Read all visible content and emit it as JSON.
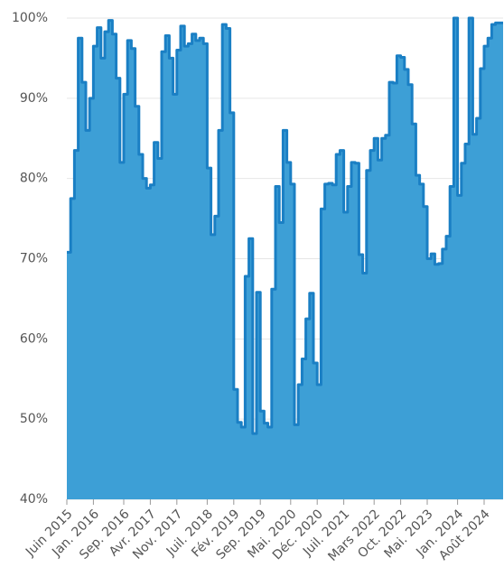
{
  "chart_data": {
    "type": "step-area",
    "categories": [
      "Juin 2015",
      null,
      null,
      null,
      null,
      null,
      null,
      "Jan. 2016",
      null,
      null,
      null,
      null,
      null,
      null,
      null,
      "Sep. 2016",
      null,
      null,
      null,
      null,
      null,
      null,
      "Avr. 2017",
      null,
      null,
      null,
      null,
      null,
      null,
      "Nov. 2017",
      null,
      null,
      null,
      null,
      null,
      null,
      null,
      "Juil. 2018",
      null,
      null,
      null,
      null,
      null,
      null,
      "Fév. 2019",
      null,
      null,
      null,
      null,
      null,
      null,
      "Sep. 2019",
      null,
      null,
      null,
      null,
      null,
      null,
      null,
      "Mai. 2020",
      null,
      null,
      null,
      null,
      null,
      null,
      "Déc. 2020",
      null,
      null,
      null,
      null,
      null,
      null,
      "Juil. 2021",
      null,
      null,
      null,
      null,
      null,
      null,
      null,
      "Mars 2022",
      null,
      null,
      null,
      null,
      null,
      null,
      "Oct. 2022",
      null,
      null,
      null,
      null,
      null,
      null,
      "Mai. 2023",
      null,
      null,
      null,
      null,
      null,
      null,
      null,
      "Jan. 2024",
      null,
      null,
      null,
      null,
      null,
      null,
      "Août 2024",
      null,
      null,
      null,
      null
    ],
    "values": [
      70.8,
      77.5,
      83.5,
      97.5,
      92,
      86,
      90,
      96.5,
      98.8,
      95,
      98.3,
      99.7,
      98,
      92.5,
      82,
      90.5,
      97.2,
      96.2,
      89,
      83,
      80,
      78.8,
      79.2,
      84.5,
      82.5,
      95.8,
      97.8,
      95,
      90.5,
      96,
      99,
      96.5,
      96.8,
      98,
      97.2,
      97.5,
      96.8,
      81.3,
      73,
      75.3,
      86,
      99.2,
      98.7,
      88.2,
      53.7,
      49.6,
      49,
      67.8,
      72.5,
      48.2,
      65.8,
      51,
      49.5,
      49,
      66.2,
      79,
      74.5,
      86,
      82,
      79.3,
      49.3,
      54.3,
      57.5,
      62.5,
      65.7,
      57,
      54.3,
      76.2,
      79.3,
      79.4,
      79.2,
      83,
      83.5,
      75.8,
      79,
      82,
      81.9,
      70.5,
      68.2,
      81,
      83.5,
      85,
      82.3,
      85,
      85.4,
      92,
      91.9,
      95.3,
      95.1,
      93.6,
      91.7,
      86.8,
      80.4,
      79.3,
      76.5,
      70,
      70.6,
      69.3,
      69.4,
      71.2,
      72.8,
      79,
      100,
      77.9,
      81.9,
      84.3,
      100,
      85.5,
      87.5,
      93.7,
      96.5,
      97.5,
      99.2,
      99.4,
      99.4
    ],
    "color": "#3d9fd6",
    "line_color": "#1a7fc4",
    "ylim": [
      40,
      100
    ],
    "yticks": [
      {
        "value": 40,
        "label": "40%"
      },
      {
        "value": 50,
        "label": "50%"
      },
      {
        "value": 60,
        "label": "60%"
      },
      {
        "value": 70,
        "label": "70%"
      },
      {
        "value": 80,
        "label": "80%"
      },
      {
        "value": 90,
        "label": "90%"
      },
      {
        "value": 100,
        "label": "100%"
      }
    ],
    "grid": true
  }
}
